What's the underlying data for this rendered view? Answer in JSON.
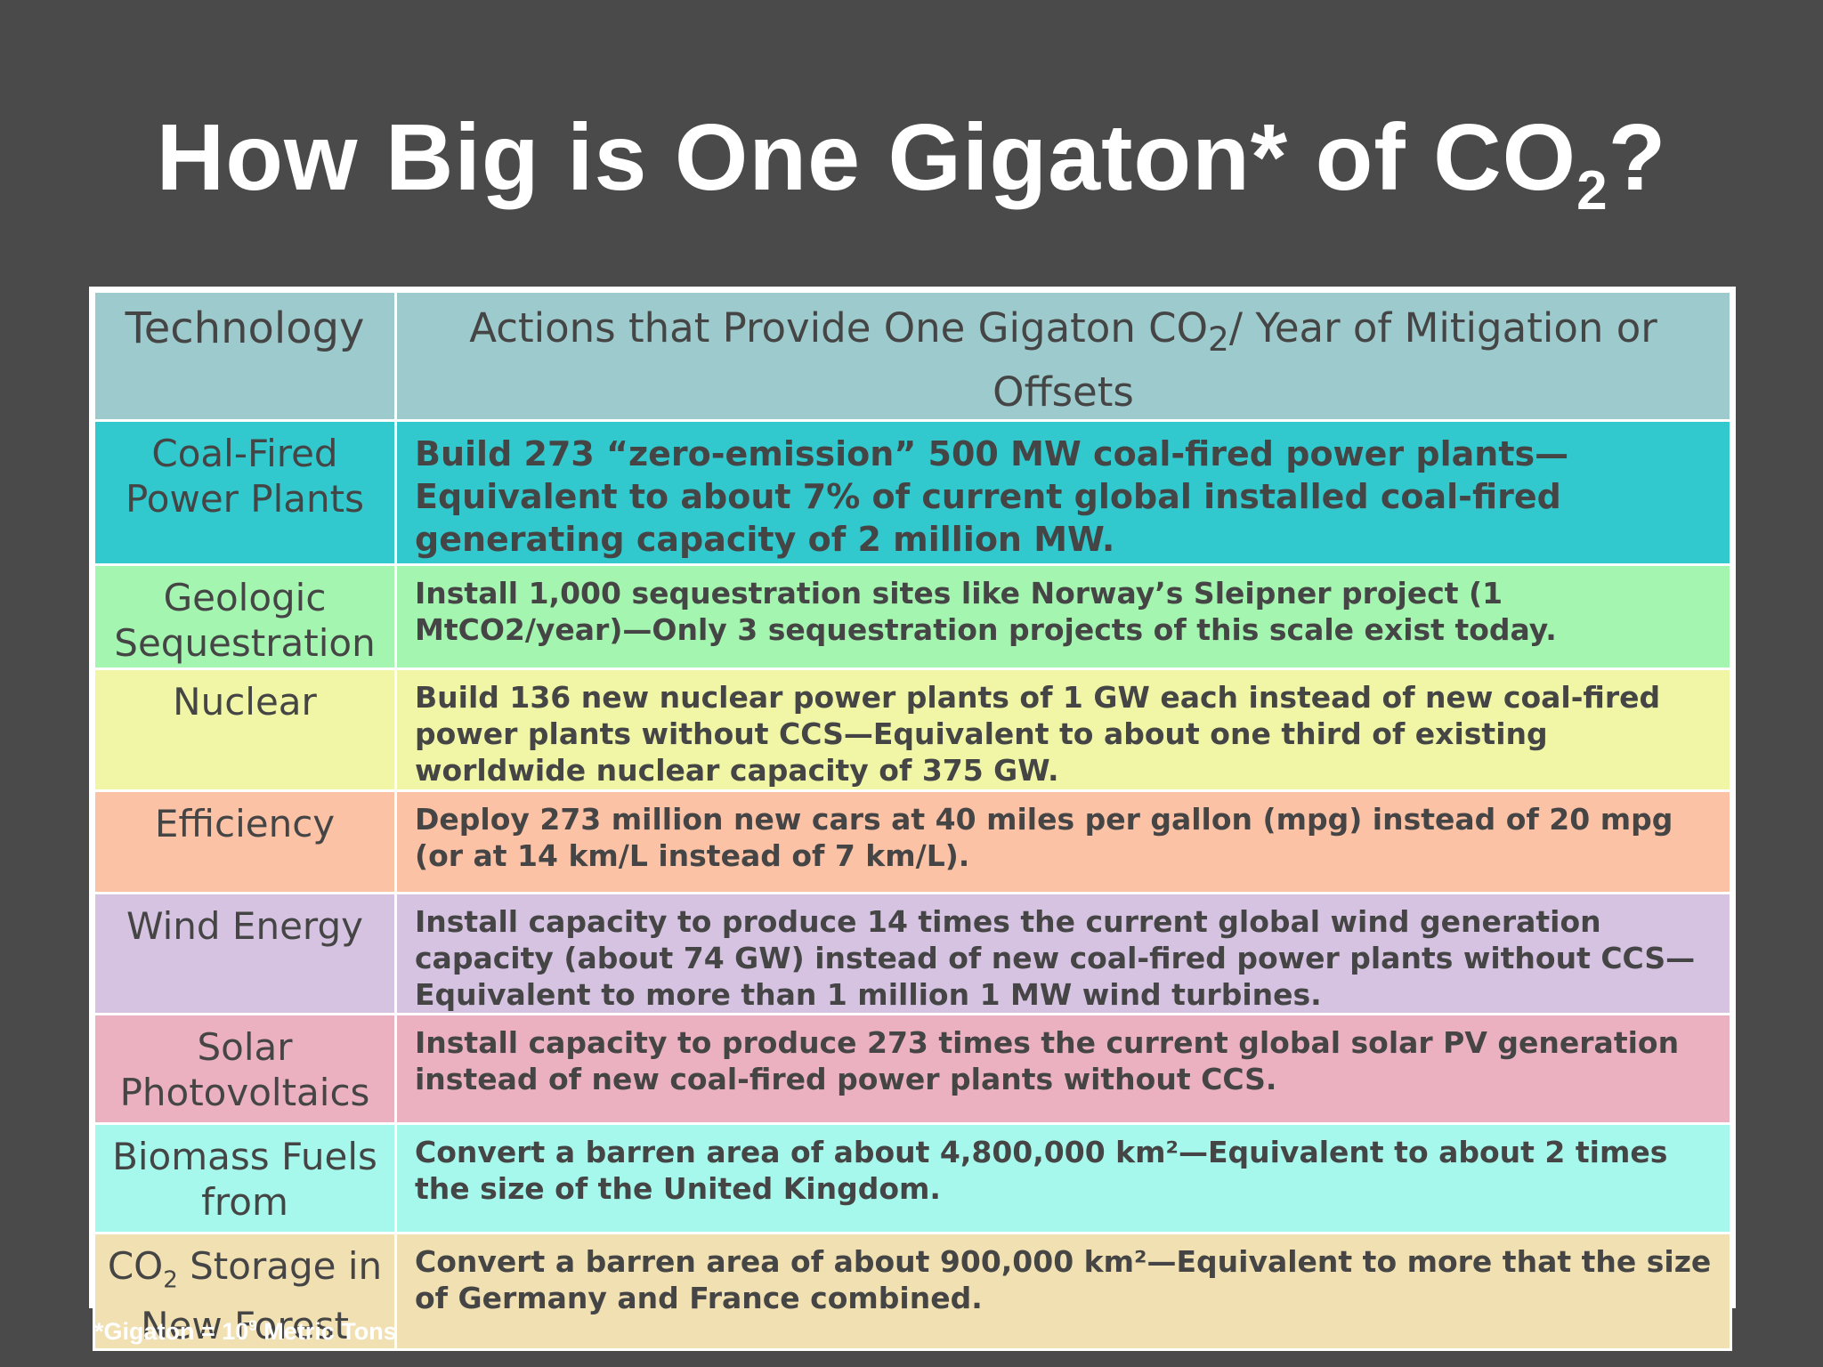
{
  "title": {
    "text": "How Big is One Gigaton* of CO",
    "sub": "2",
    "suffix": "?"
  },
  "table": {
    "header": {
      "technology": "Technology",
      "actions_pre": "Actions that Provide One Gigaton CO",
      "actions_sub": "2",
      "actions_post": "/ Year of Mitigation or Offsets",
      "color": "#9dcbcd"
    },
    "rows": [
      {
        "technology": "Coal-Fired Power Plants",
        "action": "Build 273 “zero-emission” 500 MW coal-fired power plants—Equivalent to about 7% of current global installed coal-fired generating capacity of 2 million MW.",
        "color": "#31c9cd"
      },
      {
        "technology": "Geologic Sequestration",
        "action": "Install 1,000 sequestration sites like Norway’s Sleipner project (1 MtCO2/year)—Only 3 sequestration projects of this scale exist today.",
        "color": "#a4f5af"
      },
      {
        "technology": "Nuclear",
        "action": "Build 136 new nuclear power plants of 1 GW each instead of new coal-fired power plants without CCS—Equivalent to about one third of existing worldwide nuclear capacity of 375 GW.",
        "color": "#f0f6a6"
      },
      {
        "technology": "Efficiency",
        "action": "Deploy 273 million new cars at 40 miles per gallon (mpg) instead of 20 mpg (or at 14 km/L instead of 7 km/L).",
        "color": "#fbc2a6"
      },
      {
        "technology": "Wind Energy",
        "action": "Install capacity to produce 14 times the current global wind generation capacity (about 74 GW) instead of new coal-fired power plants without CCS—Equivalent to more than 1 million 1 MW wind turbines.",
        "color": "#d6c3e2"
      },
      {
        "technology": "Solar Photovoltaics",
        "action": "Install capacity to produce 273 times the current global solar PV generation instead of new coal-fired power plants without CCS.",
        "color": "#ebb1c1"
      },
      {
        "technology": "Biomass Fuels from",
        "action": "Convert a barren area of about 4,800,000 km²—Equivalent to about 2 times the size of the United Kingdom.",
        "color": "#a5f8eb"
      },
      {
        "technology_pre": "CO",
        "technology_sub": "2",
        "technology_post": " Storage in New Forest",
        "action": "Convert a barren area of about 900,000 km²—Equivalent to more that the size of Germany and France combined.",
        "color": "#f1e0b2"
      }
    ]
  },
  "footnote": {
    "pre": "*Gigaton = 10",
    "sup": "9",
    "post": " Metric Tons"
  }
}
